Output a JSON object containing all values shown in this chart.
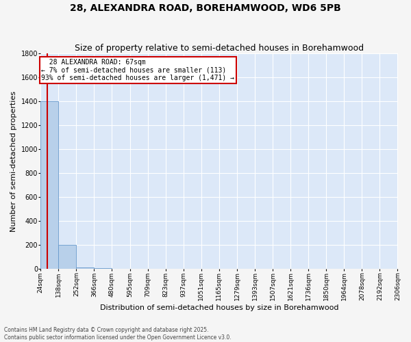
{
  "title": "28, ALEXANDRA ROAD, BOREHAMWOOD, WD6 5PB",
  "subtitle": "Size of property relative to semi-detached houses in Borehamwood",
  "xlabel": "Distribution of semi-detached houses by size in Borehamwood",
  "ylabel": "Number of semi-detached properties",
  "bar_values": [
    1400,
    200,
    10,
    5,
    3,
    2,
    1,
    1,
    0,
    0,
    0,
    0,
    0,
    0,
    0,
    0,
    0,
    0,
    0,
    0
  ],
  "bin_edges": [
    24,
    138,
    252,
    366,
    480,
    595,
    709,
    823,
    937,
    1051,
    1165,
    1279,
    1393,
    1507,
    1621,
    1736,
    1850,
    1964,
    2078,
    2192,
    2306
  ],
  "bar_color": "#b8d0ea",
  "bar_edgecolor": "#6699cc",
  "bg_color": "#dce8f8",
  "grid_color": "#ffffff",
  "property_size": 67,
  "property_label": "28 ALEXANDRA ROAD: 67sqm",
  "pct_smaller": 7,
  "n_smaller": 113,
  "pct_larger": 93,
  "n_larger": 1471,
  "vline_color": "#cc0000",
  "annotation_box_color": "#cc0000",
  "annotation_text_color": "#000000",
  "ylim": [
    0,
    1800
  ],
  "yticks": [
    0,
    200,
    400,
    600,
    800,
    1000,
    1200,
    1400,
    1600,
    1800
  ],
  "footer": "Contains HM Land Registry data © Crown copyright and database right 2025.\nContains public sector information licensed under the Open Government Licence v3.0.",
  "title_fontsize": 10,
  "subtitle_fontsize": 9,
  "tick_label_fontsize": 6.5,
  "ylabel_fontsize": 8,
  "xlabel_fontsize": 8,
  "fig_bg": "#f5f5f5"
}
